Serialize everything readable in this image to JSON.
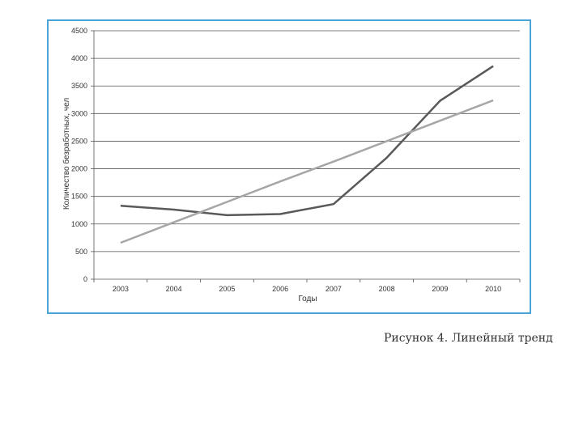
{
  "chart_data": {
    "type": "line",
    "x": [
      "2003",
      "2004",
      "2005",
      "2006",
      "2007",
      "2008",
      "2009",
      "2010"
    ],
    "series": [
      {
        "values": [
          1330,
          1260,
          1160,
          1180,
          1360,
          2200,
          3230,
          3860
        ],
        "color": "#595959"
      },
      {
        "values": [
          660,
          1030,
          1400,
          1770,
          2130,
          2500,
          2870,
          3240
        ],
        "color": "#a6a6a6"
      }
    ],
    "xlabel": "Годы",
    "ylabel": "Количество безработных, чел",
    "ylim": [
      0,
      4500
    ],
    "yticks": [
      0,
      500,
      1000,
      1500,
      2000,
      2500,
      3000,
      3500,
      4000,
      4500
    ],
    "grid": true
  },
  "caption": "Рисунок 4. Линейный тренд"
}
